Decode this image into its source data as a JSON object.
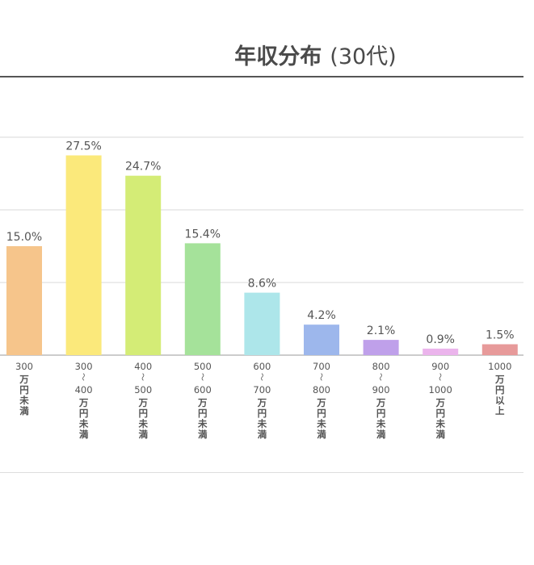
{
  "header": {
    "title": "年収分布",
    "subtitle": "(30代)"
  },
  "chart_data": {
    "type": "bar",
    "categories": [
      [
        "300",
        "万円未満"
      ],
      [
        "300",
        "〜",
        "400",
        "万円未満"
      ],
      [
        "400",
        "〜",
        "500",
        "万円未満"
      ],
      [
        "500",
        "〜",
        "600",
        "万円未満"
      ],
      [
        "600",
        "〜",
        "700",
        "万円未満"
      ],
      [
        "700",
        "〜",
        "800",
        "万円未満"
      ],
      [
        "800",
        "〜",
        "900",
        "万円未満"
      ],
      [
        "900",
        "〜",
        "1000",
        "万円未満"
      ],
      [
        "1000",
        "万円以上"
      ]
    ],
    "values": [
      15.0,
      27.5,
      24.7,
      15.4,
      8.6,
      4.2,
      2.1,
      0.9,
      1.5
    ],
    "value_labels": [
      "15.0%",
      "27.5%",
      "24.7%",
      "15.4%",
      "8.6%",
      "4.2%",
      "2.1%",
      "0.9%",
      "1.5%"
    ],
    "colors": [
      "#f6c58b",
      "#fbe97b",
      "#d4ec76",
      "#a5e29a",
      "#ade6ea",
      "#9db7ec",
      "#bfa0ea",
      "#ebb4ec",
      "#e79a9a"
    ],
    "ylim": [
      0,
      30
    ],
    "grid": true,
    "gridline_color": "#d9d9d9",
    "axis_color": "#bbbbbb",
    "label_color": "#555555"
  }
}
